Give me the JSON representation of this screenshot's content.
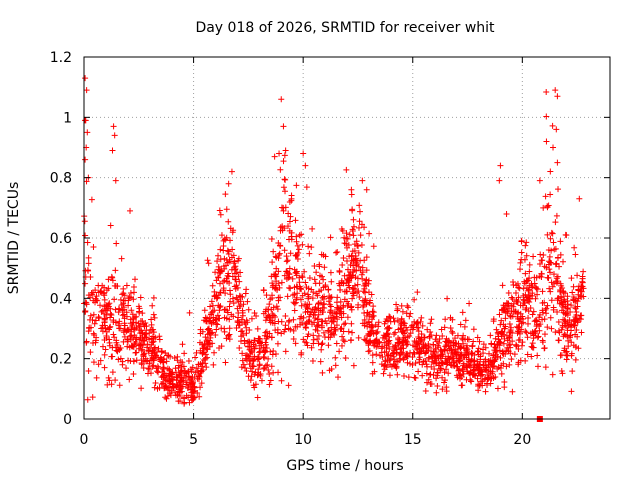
{
  "chart_data": {
    "type": "scatter",
    "title": "Day 018 of 2026, SRMTID for receiver whit",
    "xlabel": "GPS time / hours",
    "ylabel": "SRMTID / TECUs",
    "xlim": [
      0,
      24
    ],
    "ylim": [
      0,
      1.2
    ],
    "xticks": [
      0,
      5,
      10,
      15,
      20
    ],
    "yticks": [
      0,
      0.2,
      0.4,
      0.6,
      0.8,
      1,
      1.2
    ],
    "xtick_labels": [
      "0",
      "5",
      "10",
      "15",
      "20"
    ],
    "ytick_labels": [
      "0",
      "0.2",
      "0.4",
      "0.6",
      "0.8",
      "1",
      "1.2"
    ],
    "grid": true,
    "marker": "plus",
    "marker_color": "#ff0000",
    "series": [
      {
        "name": "SRMTID",
        "color": "#ff0000",
        "profile": {
          "x": [
            0.0,
            0.1,
            0.3,
            0.8,
            1.3,
            2.0,
            2.6,
            3.2,
            3.6,
            4.0,
            4.5,
            5.0,
            5.4,
            5.8,
            6.3,
            6.8,
            7.3,
            7.9,
            8.5,
            9.0,
            9.6,
            10.2,
            10.8,
            11.4,
            12.0,
            12.6,
            13.1,
            13.7,
            14.3,
            14.9,
            15.5,
            16.1,
            16.7,
            17.3,
            17.9,
            18.4,
            18.9,
            19.4,
            19.9,
            20.3,
            20.6,
            21.0,
            21.4,
            21.8,
            22.3,
            22.8
          ],
          "center": [
            0.5,
            0.48,
            0.35,
            0.32,
            0.33,
            0.3,
            0.26,
            0.22,
            0.15,
            0.11,
            0.14,
            0.1,
            0.2,
            0.32,
            0.45,
            0.5,
            0.25,
            0.2,
            0.3,
            0.5,
            0.45,
            0.38,
            0.35,
            0.32,
            0.42,
            0.5,
            0.3,
            0.24,
            0.25,
            0.26,
            0.22,
            0.2,
            0.22,
            0.2,
            0.18,
            0.15,
            0.25,
            0.32,
            0.35,
            0.4,
            0.32,
            0.45,
            0.55,
            0.35,
            0.3,
            0.45
          ],
          "spread": [
            0.25,
            0.3,
            0.12,
            0.1,
            0.15,
            0.1,
            0.08,
            0.08,
            0.05,
            0.04,
            0.07,
            0.04,
            0.08,
            0.1,
            0.15,
            0.15,
            0.08,
            0.07,
            0.12,
            0.2,
            0.15,
            0.13,
            0.12,
            0.12,
            0.14,
            0.15,
            0.09,
            0.07,
            0.07,
            0.07,
            0.07,
            0.06,
            0.07,
            0.06,
            0.06,
            0.05,
            0.08,
            0.1,
            0.12,
            0.12,
            0.1,
            0.18,
            0.2,
            0.12,
            0.1,
            0.1
          ],
          "n_points": 2600
        },
        "outliers": [
          {
            "x": 0.05,
            "y": 1.13
          },
          {
            "x": 0.12,
            "y": 1.09
          },
          {
            "x": 0.08,
            "y": 0.99
          },
          {
            "x": 0.15,
            "y": 0.95
          },
          {
            "x": 0.1,
            "y": 0.9
          },
          {
            "x": 0.05,
            "y": 0.86
          },
          {
            "x": 0.2,
            "y": 0.8
          },
          {
            "x": 1.35,
            "y": 0.97
          },
          {
            "x": 1.4,
            "y": 0.94
          },
          {
            "x": 1.3,
            "y": 0.89
          },
          {
            "x": 1.45,
            "y": 0.79
          },
          {
            "x": 2.1,
            "y": 0.69
          },
          {
            "x": 6.75,
            "y": 0.82
          },
          {
            "x": 6.6,
            "y": 0.78
          },
          {
            "x": 9.0,
            "y": 1.06
          },
          {
            "x": 9.1,
            "y": 0.97
          },
          {
            "x": 9.2,
            "y": 0.89
          },
          {
            "x": 8.9,
            "y": 0.88
          },
          {
            "x": 10.0,
            "y": 0.88
          },
          {
            "x": 10.1,
            "y": 0.84
          },
          {
            "x": 12.7,
            "y": 0.79
          },
          {
            "x": 12.9,
            "y": 0.76
          },
          {
            "x": 19.0,
            "y": 0.84
          },
          {
            "x": 18.95,
            "y": 0.79
          },
          {
            "x": 21.5,
            "y": 1.09
          },
          {
            "x": 21.6,
            "y": 1.07
          },
          {
            "x": 21.55,
            "y": 0.96
          },
          {
            "x": 21.1,
            "y": 0.92
          },
          {
            "x": 21.4,
            "y": 0.9
          },
          {
            "x": 21.6,
            "y": 0.85
          },
          {
            "x": 20.8,
            "y": 0.79
          },
          {
            "x": 22.6,
            "y": 0.73
          }
        ],
        "zero_marker": {
          "x": 20.8,
          "y": 0.0
        }
      }
    ]
  }
}
